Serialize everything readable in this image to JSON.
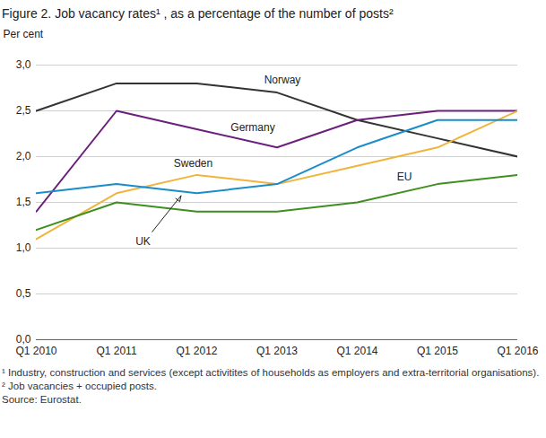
{
  "chart_data": {
    "type": "line",
    "title": "Figure 2. Job vacancy rates¹ , as a percentage of the number of posts²",
    "y_label": "Per cent",
    "categories": [
      "Q1 2010",
      "Q1 2011",
      "Q1 2012",
      "Q1 2013",
      "Q1 2014",
      "Q1 2015",
      "Q1 2016"
    ],
    "series": [
      {
        "name": "Norway",
        "color": "#333333",
        "values": [
          2.5,
          2.8,
          2.8,
          2.7,
          2.4,
          2.2,
          2.0
        ]
      },
      {
        "name": "Germany",
        "color": "#6b1f7c",
        "values": [
          1.4,
          2.5,
          2.3,
          2.1,
          2.4,
          2.5,
          2.5
        ]
      },
      {
        "name": "Sweden",
        "color": "#f0b43c",
        "values": [
          1.1,
          1.6,
          1.8,
          1.7,
          1.9,
          2.1,
          2.5
        ]
      },
      {
        "name": "UK",
        "color": "#1a8dc8",
        "values": [
          1.6,
          1.7,
          1.6,
          1.7,
          2.1,
          2.4,
          2.4
        ]
      },
      {
        "name": "EU",
        "color": "#3f8f1f",
        "values": [
          1.2,
          1.5,
          1.4,
          1.4,
          1.5,
          1.7,
          1.8
        ]
      }
    ],
    "ylim": [
      0,
      3
    ],
    "yticks": [
      {
        "value": 0,
        "label": "0,0"
      },
      {
        "value": 0.5,
        "label": "0,5"
      },
      {
        "value": 1,
        "label": "1,0"
      },
      {
        "value": 1.5,
        "label": "1,5"
      },
      {
        "value": 2,
        "label": "2,0"
      },
      {
        "value": 2.5,
        "label": "2,5"
      },
      {
        "value": 3,
        "label": "3,0"
      }
    ],
    "grid": true,
    "notes": [
      "¹ Industry, construction and services (except activitites of households as employers and extra-territorial organisations).",
      "² Job vacancies + occupied posts.",
      "Source: Eurostat."
    ]
  }
}
